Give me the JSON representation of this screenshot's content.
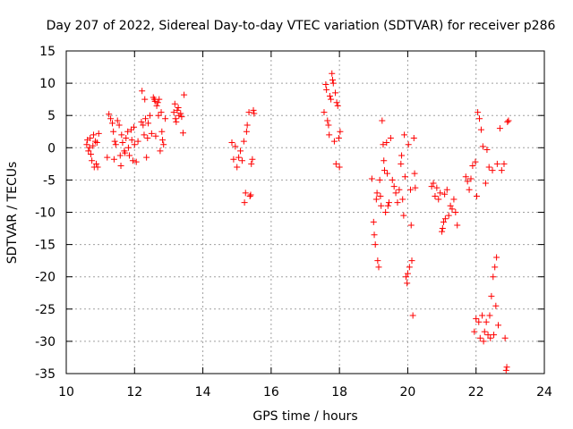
{
  "chart_data": {
    "type": "scatter",
    "title": "Day 207 of 2022, Sidereal Day-to-day VTEC variation (SDTVAR) for receiver p286",
    "xlabel": "GPS time / hours",
    "ylabel": "SDTVAR / TECUs",
    "xlim": [
      10,
      24
    ],
    "ylim": [
      -35,
      15
    ],
    "xticks": [
      10,
      12,
      14,
      16,
      18,
      20,
      22,
      24
    ],
    "yticks": [
      -35,
      -30,
      -25,
      -20,
      -15,
      -10,
      -5,
      0,
      5,
      10,
      15
    ],
    "grid": true,
    "marker": "+",
    "series": [
      {
        "name": "SDTVAR",
        "color": "#ff0000",
        "points": [
          [
            10.6,
            0.5
          ],
          [
            10.62,
            1.2
          ],
          [
            10.65,
            -0.5
          ],
          [
            10.68,
            0
          ],
          [
            10.7,
            1.5
          ],
          [
            10.72,
            -1
          ],
          [
            10.75,
            -2
          ],
          [
            10.78,
            0.3
          ],
          [
            10.8,
            2
          ],
          [
            10.82,
            -3
          ],
          [
            10.85,
            1
          ],
          [
            10.88,
            -2.5
          ],
          [
            10.9,
            0.8
          ],
          [
            10.92,
            -3
          ],
          [
            10.95,
            2.2
          ],
          [
            11.2,
            -1.5
          ],
          [
            11.25,
            5.2
          ],
          [
            11.3,
            4.5
          ],
          [
            11.35,
            3.8
          ],
          [
            11.38,
            2.5
          ],
          [
            11.4,
            -1.8
          ],
          [
            11.42,
            1
          ],
          [
            11.45,
            0.5
          ],
          [
            11.5,
            4.2
          ],
          [
            11.55,
            3.5
          ],
          [
            11.58,
            -1.2
          ],
          [
            11.6,
            -2.8
          ],
          [
            11.62,
            2
          ],
          [
            11.65,
            0.8
          ],
          [
            11.7,
            -0.5
          ],
          [
            11.72,
            -0.8
          ],
          [
            11.75,
            1.5
          ],
          [
            11.8,
            2.5
          ],
          [
            11.82,
            0
          ],
          [
            11.85,
            -1.2
          ],
          [
            11.9,
            2.8
          ],
          [
            11.92,
            1.2
          ],
          [
            11.95,
            -2
          ],
          [
            11.98,
            3.2
          ],
          [
            12.0,
            0.5
          ],
          [
            12.05,
            -2.2
          ],
          [
            12.1,
            1
          ],
          [
            12.2,
            4
          ],
          [
            12.22,
            8.8
          ],
          [
            12.25,
            3.5
          ],
          [
            12.28,
            2
          ],
          [
            12.3,
            7.5
          ],
          [
            12.32,
            4.5
          ],
          [
            12.35,
            -1.5
          ],
          [
            12.38,
            1.5
          ],
          [
            12.4,
            3.8
          ],
          [
            12.45,
            5
          ],
          [
            12.5,
            2.2
          ],
          [
            12.55,
            7.8
          ],
          [
            12.58,
            7.5
          ],
          [
            12.6,
            7.2
          ],
          [
            12.62,
            1.8
          ],
          [
            12.65,
            6.5
          ],
          [
            12.68,
            7
          ],
          [
            12.7,
            5
          ],
          [
            12.72,
            7.5
          ],
          [
            12.75,
            -0.5
          ],
          [
            12.78,
            5.5
          ],
          [
            12.8,
            2.5
          ],
          [
            12.82,
            1.2
          ],
          [
            12.85,
            0.5
          ],
          [
            12.9,
            4.5
          ],
          [
            13.15,
            5.5
          ],
          [
            13.18,
            6.8
          ],
          [
            13.2,
            4.5
          ],
          [
            13.22,
            4
          ],
          [
            13.25,
            5.8
          ],
          [
            13.28,
            6.2
          ],
          [
            13.3,
            5
          ],
          [
            13.35,
            5.3
          ],
          [
            13.38,
            4.8
          ],
          [
            13.42,
            2.3
          ],
          [
            13.45,
            8.2
          ],
          [
            14.85,
            0.8
          ],
          [
            14.9,
            -1.8
          ],
          [
            14.95,
            0.2
          ],
          [
            15.0,
            -3
          ],
          [
            15.05,
            -1.5
          ],
          [
            15.1,
            -0.5
          ],
          [
            15.15,
            -2
          ],
          [
            15.2,
            1
          ],
          [
            15.22,
            -8.5
          ],
          [
            15.25,
            -7
          ],
          [
            15.28,
            2.5
          ],
          [
            15.3,
            3.5
          ],
          [
            15.35,
            5.5
          ],
          [
            15.38,
            -7.5
          ],
          [
            15.4,
            -7.3
          ],
          [
            15.42,
            -2.5
          ],
          [
            15.45,
            -1.8
          ],
          [
            15.48,
            5.8
          ],
          [
            15.5,
            5.3
          ],
          [
            17.55,
            5.5
          ],
          [
            17.6,
            9.8
          ],
          [
            17.62,
            9
          ],
          [
            17.65,
            4.2
          ],
          [
            17.68,
            3.5
          ],
          [
            17.7,
            2
          ],
          [
            17.72,
            8
          ],
          [
            17.75,
            7.5
          ],
          [
            17.78,
            11.5
          ],
          [
            17.8,
            10.5
          ],
          [
            17.82,
            10
          ],
          [
            17.85,
            1
          ],
          [
            17.88,
            8.5
          ],
          [
            17.9,
            -2.5
          ],
          [
            17.92,
            7
          ],
          [
            17.95,
            6.5
          ],
          [
            17.98,
            1.5
          ],
          [
            18.0,
            -3
          ],
          [
            18.02,
            2.5
          ],
          [
            18.95,
            -4.8
          ],
          [
            19.0,
            -11.5
          ],
          [
            19.02,
            -13.5
          ],
          [
            19.05,
            -15
          ],
          [
            19.08,
            -8
          ],
          [
            19.1,
            -7
          ],
          [
            19.12,
            -17.5
          ],
          [
            19.15,
            -18.5
          ],
          [
            19.18,
            -5
          ],
          [
            19.2,
            -7.5
          ],
          [
            19.22,
            -9
          ],
          [
            19.25,
            4.2
          ],
          [
            19.28,
            0.5
          ],
          [
            19.3,
            -2
          ],
          [
            19.32,
            -3.5
          ],
          [
            19.35,
            -10
          ],
          [
            19.38,
            0.8
          ],
          [
            19.4,
            -4
          ],
          [
            19.42,
            -9
          ],
          [
            19.45,
            -8.5
          ],
          [
            19.5,
            1.5
          ],
          [
            19.55,
            -5
          ],
          [
            19.6,
            -6
          ],
          [
            19.65,
            -7
          ],
          [
            19.7,
            -8.5
          ],
          [
            19.75,
            -6.5
          ],
          [
            19.8,
            -2.5
          ],
          [
            19.82,
            -1.2
          ],
          [
            19.85,
            -8
          ],
          [
            19.88,
            -10.5
          ],
          [
            19.9,
            2
          ],
          [
            19.92,
            -4.5
          ],
          [
            19.95,
            -20
          ],
          [
            19.98,
            -21
          ],
          [
            20.0,
            -19.5
          ],
          [
            20.02,
            0.5
          ],
          [
            20.05,
            -18.5
          ],
          [
            20.08,
            -6.5
          ],
          [
            20.1,
            -12
          ],
          [
            20.12,
            -17.5
          ],
          [
            20.15,
            -26
          ],
          [
            20.18,
            1.5
          ],
          [
            20.2,
            -4
          ],
          [
            20.22,
            -6.2
          ],
          [
            20.7,
            -6
          ],
          [
            20.75,
            -5.5
          ],
          [
            20.8,
            -7.5
          ],
          [
            20.85,
            -6.2
          ],
          [
            20.9,
            -8
          ],
          [
            20.95,
            -7
          ],
          [
            21.0,
            -13
          ],
          [
            21.02,
            -12.5
          ],
          [
            21.05,
            -11.5
          ],
          [
            21.08,
            -7.2
          ],
          [
            21.1,
            -11
          ],
          [
            21.15,
            -6.5
          ],
          [
            21.2,
            -10.5
          ],
          [
            21.25,
            -9
          ],
          [
            21.3,
            -9.5
          ],
          [
            21.35,
            -8
          ],
          [
            21.4,
            -10
          ],
          [
            21.45,
            -12
          ],
          [
            21.7,
            -4.5
          ],
          [
            21.75,
            -5.2
          ],
          [
            21.8,
            -6.5
          ],
          [
            21.85,
            -4.8
          ],
          [
            21.9,
            -2.8
          ],
          [
            21.95,
            -28.5
          ],
          [
            21.98,
            -2.2
          ],
          [
            22.0,
            -26.5
          ],
          [
            22.02,
            -7.5
          ],
          [
            22.05,
            5.5
          ],
          [
            22.08,
            -27
          ],
          [
            22.1,
            4.5
          ],
          [
            22.12,
            -29.5
          ],
          [
            22.15,
            2.8
          ],
          [
            22.18,
            -26
          ],
          [
            22.2,
            0.2
          ],
          [
            22.22,
            -30
          ],
          [
            22.25,
            -28.5
          ],
          [
            22.28,
            -5.5
          ],
          [
            22.3,
            -27
          ],
          [
            22.32,
            -0.3
          ],
          [
            22.35,
            -29
          ],
          [
            22.38,
            -3
          ],
          [
            22.4,
            -26
          ],
          [
            22.42,
            -29.5
          ],
          [
            22.45,
            -23
          ],
          [
            22.48,
            -3.5
          ],
          [
            22.5,
            -20
          ],
          [
            22.52,
            -29
          ],
          [
            22.55,
            -18.5
          ],
          [
            22.58,
            -24.5
          ],
          [
            22.6,
            -17
          ],
          [
            22.62,
            -2.5
          ],
          [
            22.65,
            -27.5
          ],
          [
            22.7,
            3
          ],
          [
            22.75,
            -3.5
          ],
          [
            22.82,
            -2.5
          ],
          [
            22.85,
            -29.5
          ],
          [
            22.88,
            -34.5
          ],
          [
            22.9,
            -34
          ],
          [
            22.92,
            4
          ],
          [
            22.95,
            4.2
          ]
        ]
      }
    ]
  }
}
